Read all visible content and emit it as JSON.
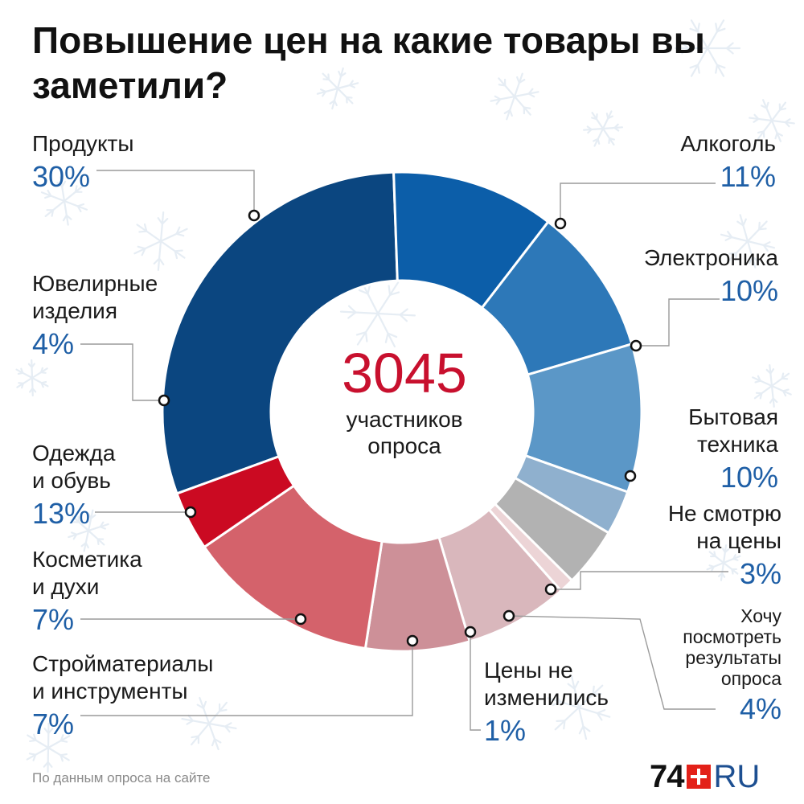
{
  "title": "Повышение цен на какие товары вы заметили?",
  "center": {
    "number": "3045",
    "line1": "участников",
    "line2": "опроса"
  },
  "footer": "По данным опроса на сайте",
  "logo": {
    "num": "74",
    "ru": "RU"
  },
  "colors": {
    "Продукты": "#0b4680",
    "Алкоголь": "#0c5ea9",
    "Электроника": "#2d78b8",
    "Бытовая техника": "#5b97c7",
    "Не смотрю на цены": "#8fb0ce",
    "Хочу посмотреть результаты опроса": "#b2b2b2",
    "Цены не изменились": "#ecd4d6",
    "Стройматериалы и инструменты": "#d9b7bc",
    "Косметика и духи": "#cd9098",
    "Одежда и обувь": "#d4626b",
    "Ювелирные изделия": "#cb0a22"
  },
  "chart_data": {
    "type": "pie",
    "title": "Повышение цен на какие товары вы заметили?",
    "categories": [
      "Продукты",
      "Алкоголь",
      "Электроника",
      "Бытовая техника",
      "Не смотрю на цены",
      "Хочу посмотреть результаты опроса",
      "Цены не изменились",
      "Стройматериалы и инструменты",
      "Косметика и духи",
      "Одежда и обувь",
      "Ювелирные изделия"
    ],
    "values": [
      30,
      11,
      10,
      10,
      3,
      4,
      1,
      7,
      7,
      13,
      4
    ],
    "labels": [
      {
        "lines": [
          "Продукты"
        ],
        "pct": "30%"
      },
      {
        "lines": [
          "Алкоголь"
        ],
        "pct": "11%"
      },
      {
        "lines": [
          "Электроника"
        ],
        "pct": "10%"
      },
      {
        "lines": [
          "Бытовая",
          "техника"
        ],
        "pct": "10%"
      },
      {
        "lines": [
          "Не смотрю",
          "на цены"
        ],
        "pct": "3%"
      },
      {
        "lines": [
          "Хочу",
          "посмотреть",
          "результаты",
          "опроса"
        ],
        "pct": "4%"
      },
      {
        "lines": [
          "Цены не",
          "изменились"
        ],
        "pct": "1%"
      },
      {
        "lines": [
          "Стройматериалы",
          "и инструменты"
        ],
        "pct": "7%"
      },
      {
        "lines": [
          "Косметика",
          "и духи"
        ],
        "pct": "7%"
      },
      {
        "lines": [
          "Одежда",
          "и обувь"
        ],
        "pct": "13%"
      },
      {
        "lines": [
          "Ювелирные",
          "изделия"
        ],
        "pct": "4%"
      }
    ],
    "total_respondents": 3045
  }
}
